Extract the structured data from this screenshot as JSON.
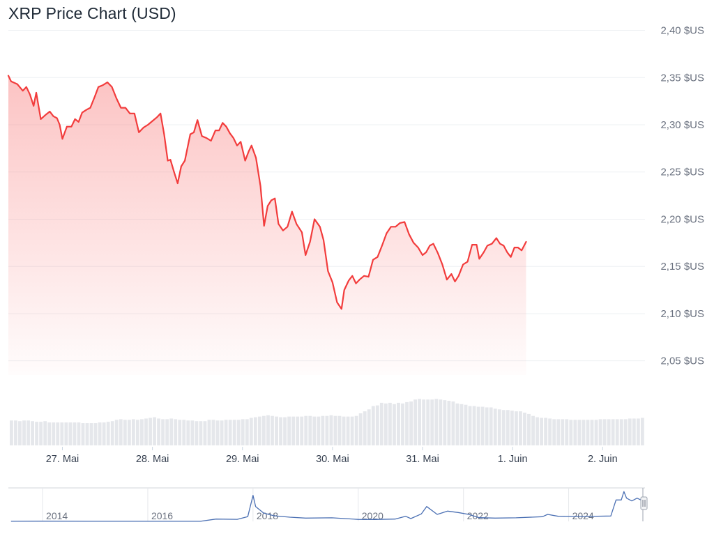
{
  "title": "XRP Price Chart (USD)",
  "chart_data": {
    "type": "line",
    "title": "XRP Price Chart (USD)",
    "xlabel": "",
    "ylabel": "",
    "y_unit": "$US",
    "ylim": [
      2.035,
      2.41
    ],
    "y_ticks": [
      "2,40 $US",
      "2,35 $US",
      "2,30 $US",
      "2,25 $US",
      "2,20 $US",
      "2,15 $US",
      "2,10 $US",
      "2,05 $US"
    ],
    "y_tick_values": [
      2.4,
      2.35,
      2.3,
      2.25,
      2.2,
      2.15,
      2.1,
      2.05
    ],
    "x_ticks": [
      "27. Mai",
      "28. Mai",
      "29. Mai",
      "30. Mai",
      "31. Mai",
      "1. Juin",
      "2. Juin"
    ],
    "x_tick_positions": [
      1,
      2,
      3,
      4,
      5,
      6,
      7
    ],
    "x_range": [
      0.4,
      7.47
    ],
    "grid": true,
    "line_color": "#f23c3c",
    "fill_color": "#f87171",
    "price": [
      [
        0.4,
        2.352
      ],
      [
        0.43,
        2.346
      ],
      [
        0.5,
        2.343
      ],
      [
        0.56,
        2.336
      ],
      [
        0.6,
        2.34
      ],
      [
        0.64,
        2.332
      ],
      [
        0.68,
        2.32
      ],
      [
        0.71,
        2.334
      ],
      [
        0.76,
        2.306
      ],
      [
        0.82,
        2.311
      ],
      [
        0.86,
        2.314
      ],
      [
        0.9,
        2.309
      ],
      [
        0.94,
        2.307
      ],
      [
        0.97,
        2.3
      ],
      [
        1.0,
        2.285
      ],
      [
        1.05,
        2.298
      ],
      [
        1.1,
        2.298
      ],
      [
        1.14,
        2.306
      ],
      [
        1.18,
        2.303
      ],
      [
        1.22,
        2.313
      ],
      [
        1.27,
        2.316
      ],
      [
        1.31,
        2.318
      ],
      [
        1.36,
        2.33
      ],
      [
        1.4,
        2.34
      ],
      [
        1.45,
        2.342
      ],
      [
        1.5,
        2.345
      ],
      [
        1.55,
        2.34
      ],
      [
        1.6,
        2.328
      ],
      [
        1.65,
        2.318
      ],
      [
        1.7,
        2.318
      ],
      [
        1.75,
        2.312
      ],
      [
        1.8,
        2.312
      ],
      [
        1.85,
        2.292
      ],
      [
        1.9,
        2.297
      ],
      [
        1.95,
        2.3
      ],
      [
        2.0,
        2.304
      ],
      [
        2.05,
        2.308
      ],
      [
        2.09,
        2.312
      ],
      [
        2.13,
        2.29
      ],
      [
        2.17,
        2.262
      ],
      [
        2.2,
        2.263
      ],
      [
        2.24,
        2.25
      ],
      [
        2.28,
        2.238
      ],
      [
        2.32,
        2.256
      ],
      [
        2.36,
        2.262
      ],
      [
        2.42,
        2.29
      ],
      [
        2.46,
        2.292
      ],
      [
        2.5,
        2.305
      ],
      [
        2.55,
        2.288
      ],
      [
        2.6,
        2.286
      ],
      [
        2.65,
        2.283
      ],
      [
        2.7,
        2.294
      ],
      [
        2.74,
        2.294
      ],
      [
        2.78,
        2.302
      ],
      [
        2.82,
        2.298
      ],
      [
        2.86,
        2.291
      ],
      [
        2.9,
        2.286
      ],
      [
        2.94,
        2.278
      ],
      [
        2.98,
        2.282
      ],
      [
        3.03,
        2.262
      ],
      [
        3.07,
        2.272
      ],
      [
        3.1,
        2.278
      ],
      [
        3.15,
        2.265
      ],
      [
        3.2,
        2.235
      ],
      [
        3.24,
        2.193
      ],
      [
        3.28,
        2.214
      ],
      [
        3.32,
        2.22
      ],
      [
        3.36,
        2.222
      ],
      [
        3.4,
        2.195
      ],
      [
        3.45,
        2.188
      ],
      [
        3.5,
        2.192
      ],
      [
        3.55,
        2.208
      ],
      [
        3.6,
        2.195
      ],
      [
        3.66,
        2.186
      ],
      [
        3.7,
        2.162
      ],
      [
        3.75,
        2.176
      ],
      [
        3.8,
        2.2
      ],
      [
        3.86,
        2.192
      ],
      [
        3.9,
        2.178
      ],
      [
        3.95,
        2.145
      ],
      [
        4.0,
        2.133
      ],
      [
        4.05,
        2.112
      ],
      [
        4.1,
        2.105
      ],
      [
        4.13,
        2.125
      ],
      [
        4.18,
        2.135
      ],
      [
        4.22,
        2.14
      ],
      [
        4.26,
        2.132
      ],
      [
        4.3,
        2.136
      ],
      [
        4.35,
        2.14
      ],
      [
        4.4,
        2.139
      ],
      [
        4.45,
        2.157
      ],
      [
        4.5,
        2.16
      ],
      [
        4.55,
        2.172
      ],
      [
        4.6,
        2.185
      ],
      [
        4.65,
        2.192
      ],
      [
        4.7,
        2.192
      ],
      [
        4.75,
        2.196
      ],
      [
        4.8,
        2.197
      ],
      [
        4.85,
        2.184
      ],
      [
        4.9,
        2.175
      ],
      [
        4.95,
        2.17
      ],
      [
        5.0,
        2.162
      ],
      [
        5.04,
        2.165
      ],
      [
        5.08,
        2.172
      ],
      [
        5.12,
        2.174
      ],
      [
        5.17,
        2.164
      ],
      [
        5.22,
        2.152
      ],
      [
        5.27,
        2.136
      ],
      [
        5.32,
        2.142
      ],
      [
        5.36,
        2.134
      ],
      [
        5.4,
        2.14
      ],
      [
        5.45,
        2.152
      ],
      [
        5.5,
        2.155
      ],
      [
        5.55,
        2.173
      ],
      [
        5.6,
        2.173
      ],
      [
        5.63,
        2.158
      ],
      [
        5.68,
        2.165
      ],
      [
        5.72,
        2.172
      ],
      [
        5.77,
        2.174
      ],
      [
        5.82,
        2.18
      ],
      [
        5.86,
        2.174
      ],
      [
        5.9,
        2.172
      ],
      [
        5.94,
        2.165
      ],
      [
        5.98,
        2.16
      ],
      [
        6.02,
        2.17
      ],
      [
        6.06,
        2.17
      ],
      [
        6.1,
        2.167
      ],
      [
        6.15,
        2.176
      ]
    ],
    "volume_ylim": [
      0,
      100
    ],
    "volume_color": "#e5e7eb",
    "volume": [
      38,
      38,
      37,
      38,
      38,
      37,
      36,
      36,
      37,
      35,
      35,
      35,
      35,
      35,
      35,
      35,
      35,
      34,
      34,
      34,
      34,
      35,
      35,
      36,
      37,
      39,
      40,
      39,
      39,
      40,
      39,
      40,
      41,
      42,
      43,
      41,
      40,
      40,
      41,
      40,
      39,
      39,
      38,
      38,
      37,
      37,
      37,
      39,
      39,
      38,
      38,
      39,
      39,
      39,
      39,
      40,
      40,
      42,
      43,
      44,
      45,
      46,
      45,
      44,
      43,
      43,
      44,
      44,
      44,
      44,
      45,
      45,
      44,
      44,
      45,
      45,
      46,
      45,
      45,
      44,
      44,
      44,
      45,
      49,
      52,
      55,
      60,
      61,
      65,
      64,
      65,
      63,
      65,
      64,
      66,
      67,
      70,
      71,
      70,
      70,
      70,
      71,
      70,
      69,
      68,
      67,
      64,
      63,
      62,
      60,
      60,
      59,
      59,
      58,
      58,
      56,
      55,
      54,
      54,
      53,
      52,
      52,
      50,
      48,
      45,
      43,
      42,
      42,
      41,
      40,
      40,
      40,
      40,
      39,
      39,
      39,
      39,
      39,
      39,
      39,
      40,
      40,
      40,
      40,
      40,
      40,
      40,
      41,
      41,
      41,
      42
    ],
    "navigator": {
      "x_ticks": [
        "2014",
        "2016",
        "2018",
        "2020",
        "2022",
        "2024"
      ],
      "x_tick_values": [
        2014,
        2016,
        2018,
        2020,
        2022,
        2024
      ],
      "xlim": [
        2013.35,
        2025.45
      ],
      "ylim": [
        0,
        3.6
      ],
      "line_color": "#4a6fb3",
      "series": [
        [
          2013.4,
          0.005
        ],
        [
          2014.0,
          0.02
        ],
        [
          2015.0,
          0.01
        ],
        [
          2016.0,
          0.006
        ],
        [
          2017.0,
          0.007
        ],
        [
          2017.3,
          0.25
        ],
        [
          2017.7,
          0.22
        ],
        [
          2017.9,
          0.5
        ],
        [
          2018.0,
          2.8
        ],
        [
          2018.05,
          1.6
        ],
        [
          2018.2,
          0.9
        ],
        [
          2018.4,
          0.6
        ],
        [
          2018.7,
          0.45
        ],
        [
          2019.0,
          0.35
        ],
        [
          2019.5,
          0.38
        ],
        [
          2020.0,
          0.21
        ],
        [
          2020.3,
          0.2
        ],
        [
          2020.7,
          0.25
        ],
        [
          2020.9,
          0.55
        ],
        [
          2021.0,
          0.3
        ],
        [
          2021.2,
          0.8
        ],
        [
          2021.3,
          1.6
        ],
        [
          2021.5,
          0.75
        ],
        [
          2021.7,
          1.1
        ],
        [
          2021.9,
          0.95
        ],
        [
          2022.1,
          0.75
        ],
        [
          2022.3,
          0.4
        ],
        [
          2022.6,
          0.35
        ],
        [
          2023.0,
          0.38
        ],
        [
          2023.5,
          0.5
        ],
        [
          2023.6,
          0.75
        ],
        [
          2023.8,
          0.55
        ],
        [
          2024.2,
          0.52
        ],
        [
          2024.8,
          0.58
        ],
        [
          2024.9,
          2.3
        ],
        [
          2025.0,
          2.3
        ],
        [
          2025.05,
          3.2
        ],
        [
          2025.1,
          2.5
        ],
        [
          2025.2,
          2.2
        ],
        [
          2025.3,
          2.5
        ],
        [
          2025.42,
          2.17
        ]
      ]
    }
  }
}
